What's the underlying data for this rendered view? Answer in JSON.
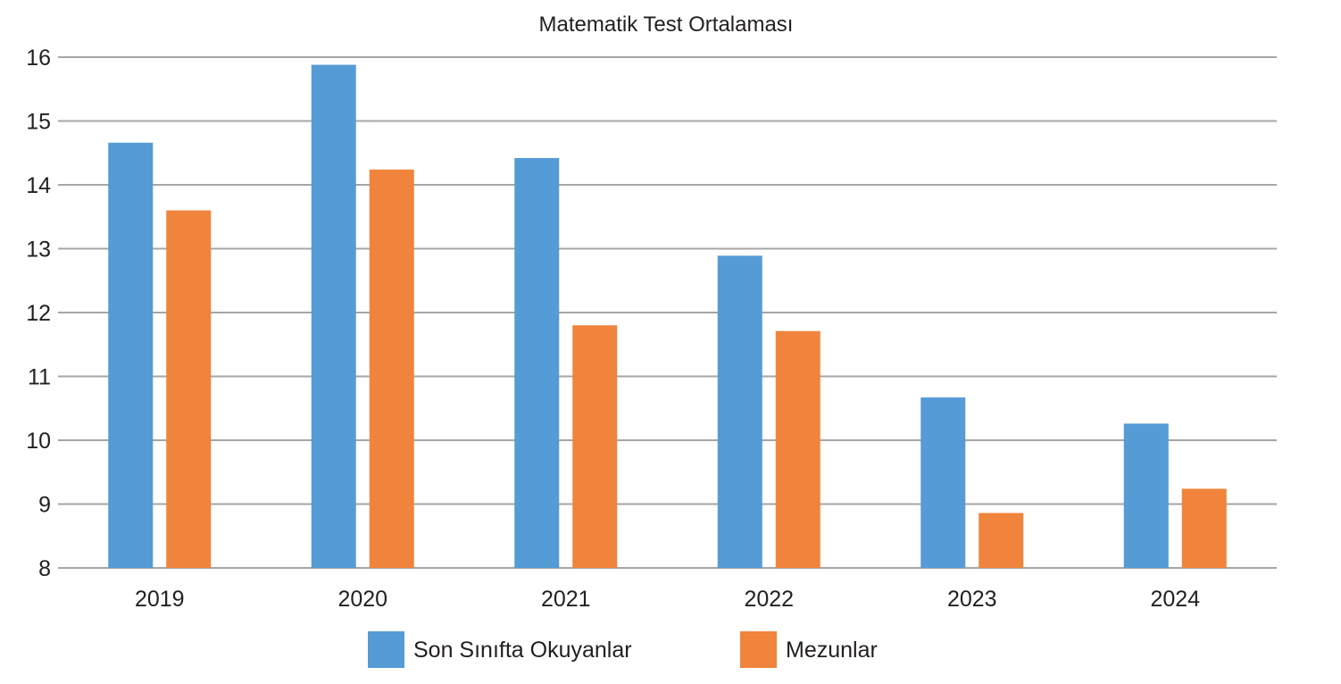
{
  "chart_data": {
    "type": "bar",
    "title": "Matematik Test Ortalaması",
    "xlabel": "",
    "ylabel": "",
    "categories": [
      "2019",
      "2020",
      "2021",
      "2022",
      "2023",
      "2024"
    ],
    "ylim": [
      8,
      16
    ],
    "yticks": [
      "8",
      "9",
      "10",
      "11",
      "12",
      "13",
      "14",
      "15",
      "16"
    ],
    "grid": true,
    "legend_position": "bottom",
    "series": [
      {
        "name": "Son Sınıfta Okuyanlar",
        "color": "#559bd6",
        "values": [
          14.66,
          15.88,
          14.42,
          12.89,
          10.67,
          10.26
        ]
      },
      {
        "name": "Mezunlar",
        "color": "#f0843c",
        "values": [
          13.6,
          14.24,
          11.8,
          11.71,
          8.86,
          9.24
        ]
      }
    ]
  }
}
